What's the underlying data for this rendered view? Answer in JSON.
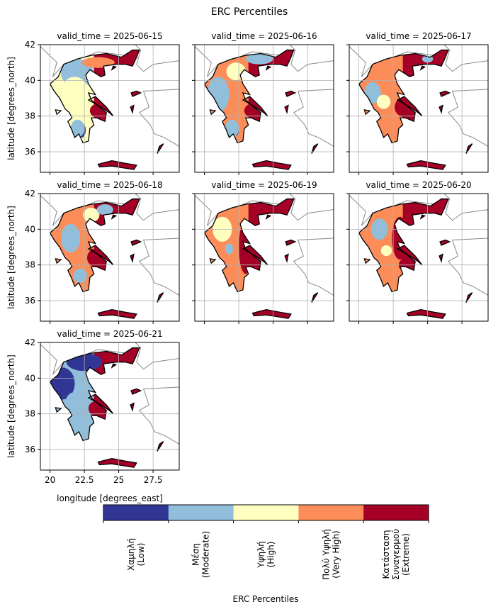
{
  "figure": {
    "title": "ERC Percentiles",
    "panels": [
      "valid_time = 2025-06-15",
      "valid_time = 2025-06-16",
      "valid_time = 2025-06-17",
      "valid_time = 2025-06-18",
      "valid_time = 2025-06-19",
      "valid_time = 2025-06-20",
      "valid_time = 2025-06-21"
    ],
    "xlabel": "longitude [degrees_east]",
    "ylabel": "latitude [degrees_north]",
    "xlim": [
      19.3,
      29.4
    ],
    "ylim": [
      34.85,
      42
    ],
    "xticks": [
      20,
      22.5,
      25,
      27.5
    ],
    "yticks": [
      36,
      38,
      40,
      42
    ],
    "grid": true,
    "colorbar": {
      "label": "ERC Percentiles",
      "categories": [
        [
          "Χαμηλή",
          "(Low)"
        ],
        [
          "Μέση",
          "(Moderate)"
        ],
        [
          "Υψηλή",
          "(High)"
        ],
        [
          "Πολύ Υψηλή",
          "(Very High)"
        ],
        [
          "Κατάσταση",
          "Συναγερμού",
          "(Extreme)"
        ]
      ],
      "colors": [
        "#313695",
        "#91bfdb",
        "#ffffbf",
        "#fc8d59",
        "#a50026"
      ]
    }
  }
}
